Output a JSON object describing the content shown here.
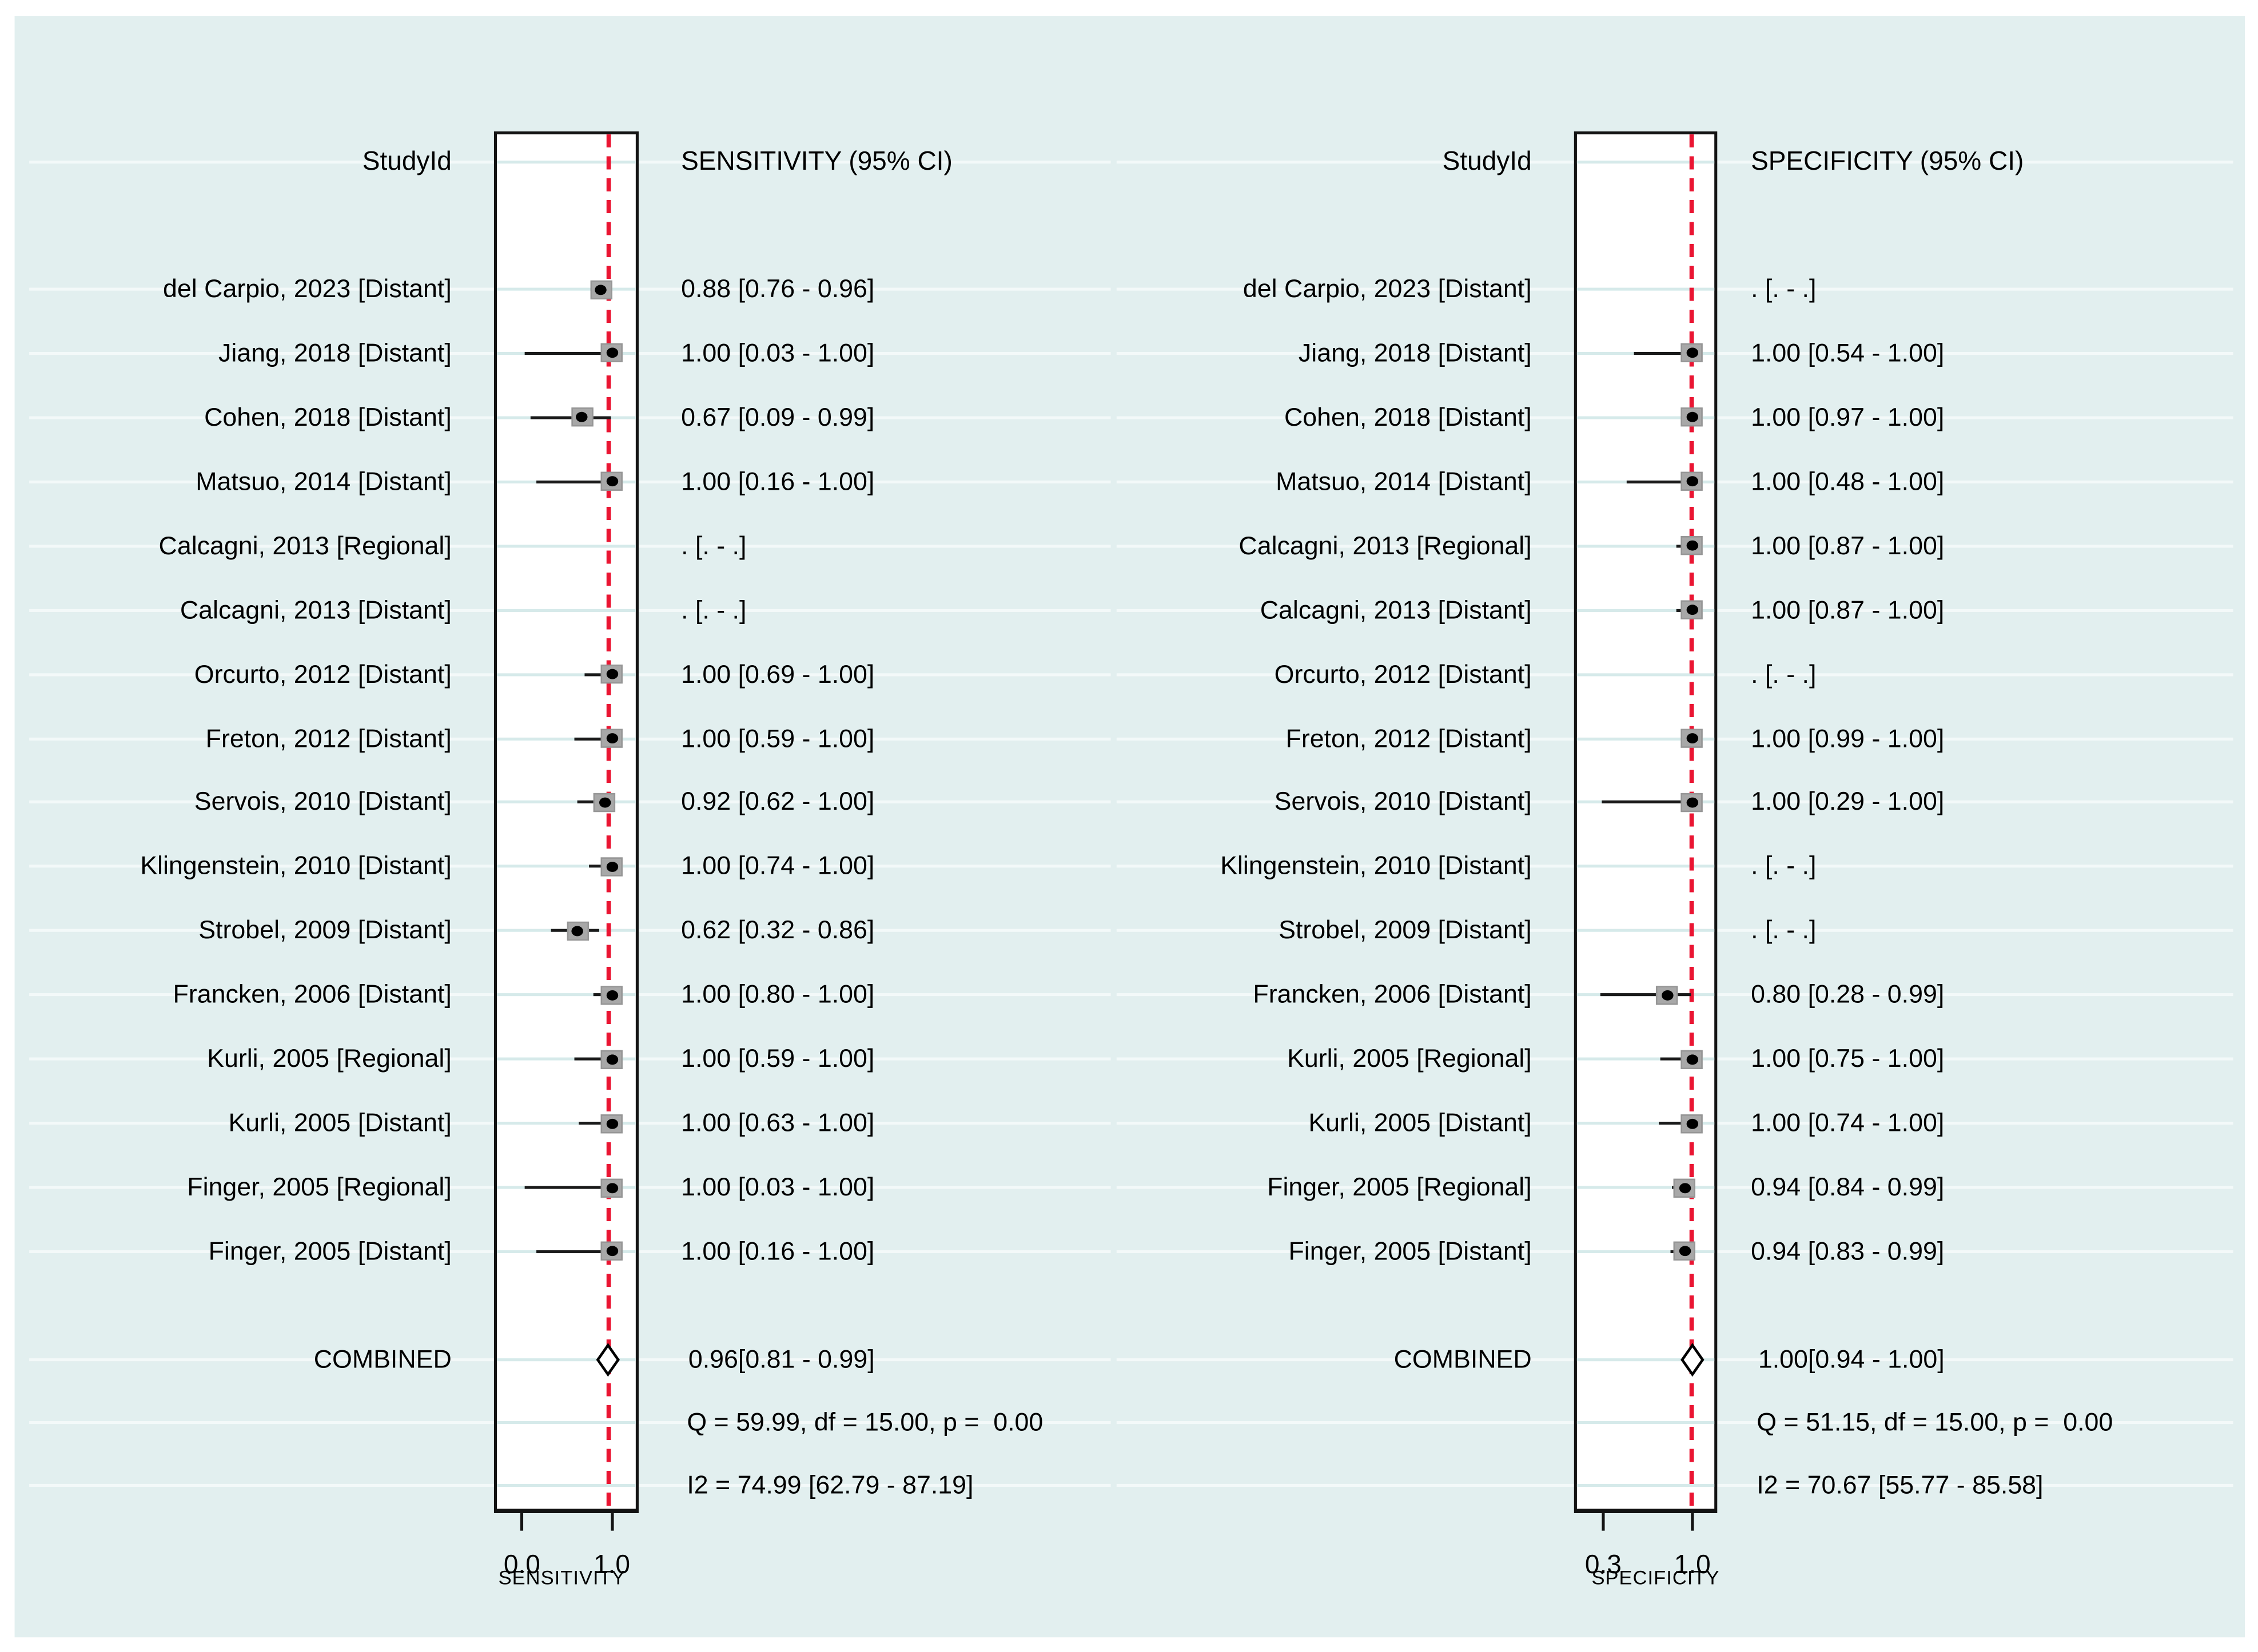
{
  "chart_data": {
    "type": "forest",
    "panels": [
      {
        "id": "sensitivity",
        "column_headers": {
          "study": "StudyId",
          "effect": "SENSITIVITY (95% CI)"
        },
        "axis": {
          "title": "SENSITIVITY",
          "range": [
            0.0,
            1.0
          ],
          "ticks": [
            {
              "value": 0.0,
              "label": "0.0"
            },
            {
              "value": 1.0,
              "label": "1.0"
            }
          ]
        },
        "ref_line_value": 0.96,
        "rows": [
          {
            "study": "del Carpio, 2023 [Distant]",
            "est": 0.88,
            "lo": 0.76,
            "hi": 0.96,
            "ci_text": "0.88 [0.76 - 0.96]"
          },
          {
            "study": "Jiang, 2018 [Distant]",
            "est": 1.0,
            "lo": 0.03,
            "hi": 1.0,
            "ci_text": "1.00 [0.03 - 1.00]"
          },
          {
            "study": "Cohen, 2018 [Distant]",
            "est": 0.67,
            "lo": 0.09,
            "hi": 0.99,
            "ci_text": "0.67 [0.09 - 0.99]"
          },
          {
            "study": "Matsuo, 2014 [Distant]",
            "est": 1.0,
            "lo": 0.16,
            "hi": 1.0,
            "ci_text": "1.00 [0.16 - 1.00]"
          },
          {
            "study": "Calcagni, 2013 [Regional]",
            "est": null,
            "lo": null,
            "hi": null,
            "ci_text": ". [. - .]"
          },
          {
            "study": "Calcagni, 2013 [Distant]",
            "est": null,
            "lo": null,
            "hi": null,
            "ci_text": ". [. - .]"
          },
          {
            "study": "Orcurto, 2012 [Distant]",
            "est": 1.0,
            "lo": 0.69,
            "hi": 1.0,
            "ci_text": "1.00 [0.69 - 1.00]"
          },
          {
            "study": "Freton, 2012 [Distant]",
            "est": 1.0,
            "lo": 0.59,
            "hi": 1.0,
            "ci_text": "1.00 [0.59 - 1.00]"
          },
          {
            "study": "Servois, 2010 [Distant]",
            "est": 0.92,
            "lo": 0.62,
            "hi": 1.0,
            "ci_text": "0.92 [0.62 - 1.00]"
          },
          {
            "study": "Klingenstein, 2010 [Distant]",
            "est": 1.0,
            "lo": 0.74,
            "hi": 1.0,
            "ci_text": "1.00 [0.74 - 1.00]"
          },
          {
            "study": "Strobel, 2009 [Distant]",
            "est": 0.62,
            "lo": 0.32,
            "hi": 0.86,
            "ci_text": "0.62 [0.32 - 0.86]"
          },
          {
            "study": "Francken, 2006 [Distant]",
            "est": 1.0,
            "lo": 0.8,
            "hi": 1.0,
            "ci_text": "1.00 [0.80 - 1.00]"
          },
          {
            "study": "Kurli, 2005 [Regional]",
            "est": 1.0,
            "lo": 0.59,
            "hi": 1.0,
            "ci_text": "1.00 [0.59 - 1.00]"
          },
          {
            "study": "Kurli, 2005 [Distant]",
            "est": 1.0,
            "lo": 0.63,
            "hi": 1.0,
            "ci_text": "1.00 [0.63 - 1.00]"
          },
          {
            "study": "Finger, 2005 [Regional]",
            "est": 1.0,
            "lo": 0.03,
            "hi": 1.0,
            "ci_text": "1.00 [0.03 - 1.00]"
          },
          {
            "study": "Finger, 2005 [Distant]",
            "est": 1.0,
            "lo": 0.16,
            "hi": 1.0,
            "ci_text": "1.00 [0.16 - 1.00]"
          }
        ],
        "combined": {
          "label": "COMBINED",
          "est": 0.96,
          "lo": 0.81,
          "hi": 0.99,
          "ci_text": "0.96[0.81 - 0.99]"
        },
        "heterogeneity": [
          "Q = 59.99, df = 15.00, p =  0.00",
          "I2 = 74.99 [62.79 - 87.19]"
        ]
      },
      {
        "id": "specificity",
        "column_headers": {
          "study": "StudyId",
          "effect": "SPECIFICITY (95% CI)"
        },
        "axis": {
          "title": "SPECIFICITY",
          "range": [
            0.3,
            1.0
          ],
          "ticks": [
            {
              "value": 0.3,
              "label": "0.3"
            },
            {
              "value": 1.0,
              "label": "1.0"
            }
          ]
        },
        "ref_line_value": 1.0,
        "rows": [
          {
            "study": "del Carpio, 2023 [Distant]",
            "est": null,
            "lo": null,
            "hi": null,
            "ci_text": ". [. - .]"
          },
          {
            "study": "Jiang, 2018 [Distant]",
            "est": 1.0,
            "lo": 0.54,
            "hi": 1.0,
            "ci_text": "1.00 [0.54 - 1.00]"
          },
          {
            "study": "Cohen, 2018 [Distant]",
            "est": 1.0,
            "lo": 0.97,
            "hi": 1.0,
            "ci_text": "1.00 [0.97 - 1.00]"
          },
          {
            "study": "Matsuo, 2014 [Distant]",
            "est": 1.0,
            "lo": 0.48,
            "hi": 1.0,
            "ci_text": "1.00 [0.48 - 1.00]"
          },
          {
            "study": "Calcagni, 2013 [Regional]",
            "est": 1.0,
            "lo": 0.87,
            "hi": 1.0,
            "ci_text": "1.00 [0.87 - 1.00]"
          },
          {
            "study": "Calcagni, 2013 [Distant]",
            "est": 1.0,
            "lo": 0.87,
            "hi": 1.0,
            "ci_text": "1.00 [0.87 - 1.00]"
          },
          {
            "study": "Orcurto, 2012 [Distant]",
            "est": null,
            "lo": null,
            "hi": null,
            "ci_text": ". [. - .]"
          },
          {
            "study": "Freton, 2012 [Distant]",
            "est": 1.0,
            "lo": 0.99,
            "hi": 1.0,
            "ci_text": "1.00 [0.99 - 1.00]"
          },
          {
            "study": "Servois, 2010 [Distant]",
            "est": 1.0,
            "lo": 0.29,
            "hi": 1.0,
            "ci_text": "1.00 [0.29 - 1.00]"
          },
          {
            "study": "Klingenstein, 2010 [Distant]",
            "est": null,
            "lo": null,
            "hi": null,
            "ci_text": ". [. - .]"
          },
          {
            "study": "Strobel, 2009 [Distant]",
            "est": null,
            "lo": null,
            "hi": null,
            "ci_text": ". [. - .]"
          },
          {
            "study": "Francken, 2006 [Distant]",
            "est": 0.8,
            "lo": 0.28,
            "hi": 0.99,
            "ci_text": "0.80 [0.28 - 0.99]"
          },
          {
            "study": "Kurli, 2005 [Regional]",
            "est": 1.0,
            "lo": 0.75,
            "hi": 1.0,
            "ci_text": "1.00 [0.75 - 1.00]"
          },
          {
            "study": "Kurli, 2005 [Distant]",
            "est": 1.0,
            "lo": 0.74,
            "hi": 1.0,
            "ci_text": "1.00 [0.74 - 1.00]"
          },
          {
            "study": "Finger, 2005 [Regional]",
            "est": 0.94,
            "lo": 0.84,
            "hi": 0.99,
            "ci_text": "0.94 [0.84 - 0.99]"
          },
          {
            "study": "Finger, 2005 [Distant]",
            "est": 0.94,
            "lo": 0.83,
            "hi": 0.99,
            "ci_text": "0.94 [0.83 - 0.99]"
          }
        ],
        "combined": {
          "label": "COMBINED",
          "est": 1.0,
          "lo": 0.94,
          "hi": 1.0,
          "ci_text": "1.00[0.94 - 1.00]"
        },
        "heterogeneity": [
          "Q = 51.15, df = 15.00, p =  0.00",
          "I2 = 70.67 [55.77 - 85.58]"
        ]
      }
    ],
    "colors": {
      "background": "#e2efef",
      "plot_background": "#ffffff",
      "ref_line": "#ea1532",
      "marker_fill": "#a8a8a8",
      "marker_dot": "#000000",
      "gridline": "#d6eaea",
      "ci_line": "#1a1a1a",
      "border": "#131313"
    }
  }
}
